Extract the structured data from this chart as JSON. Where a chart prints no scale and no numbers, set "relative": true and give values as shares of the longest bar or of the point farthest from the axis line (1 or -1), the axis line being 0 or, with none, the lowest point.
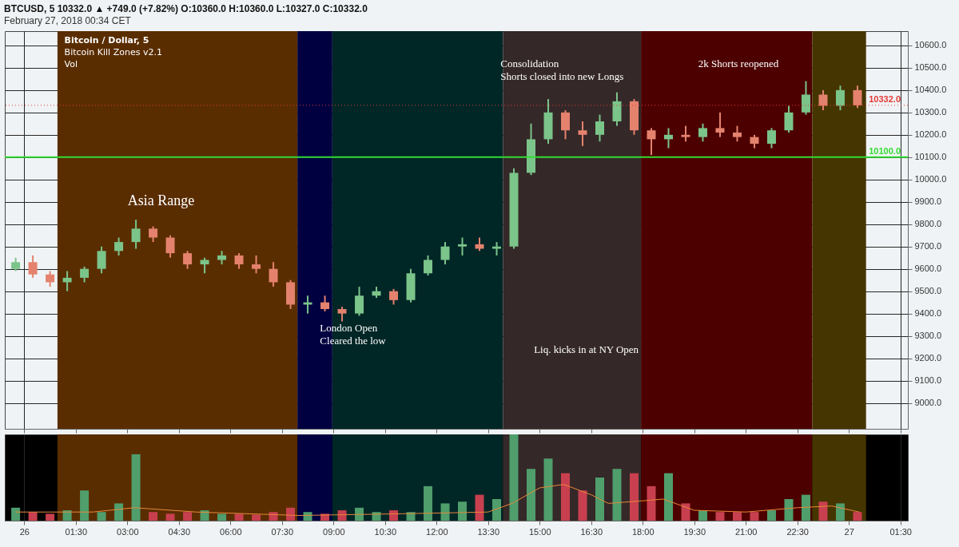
{
  "chart_data": [
    {
      "type": "candlestick",
      "title": "BTCUSD, 5  10332.0 ▲ +749.0 (+7.82%) O:10360.0 H:10360.0 L:10327.0 C:10332.0",
      "subtitle": "February 27, 2018 00:34 CET",
      "annotations": [
        "Bitcoin / Dollar, 5",
        "Bitcoin Kill Zones v2.1",
        "Vol",
        "Asia Range",
        "London Open\nCleared the low",
        "Liq. kicks in at NY Open",
        "Consolidation\nShorts closed into new Longs",
        "2k Shorts reopened"
      ],
      "x": [
        "2018-02-25T23:45",
        "2018-02-26T00:15",
        "2018-02-26T00:45",
        "2018-02-26T01:15",
        "2018-02-26T01:45",
        "2018-02-26T02:15",
        "2018-02-26T02:45",
        "2018-02-26T03:15",
        "2018-02-26T03:45",
        "2018-02-26T04:15",
        "2018-02-26T04:45",
        "2018-02-26T05:15",
        "2018-02-26T05:45",
        "2018-02-26T06:15",
        "2018-02-26T06:45",
        "2018-02-26T07:15",
        "2018-02-26T07:45",
        "2018-02-26T08:15",
        "2018-02-26T08:45",
        "2018-02-26T09:15",
        "2018-02-26T09:45",
        "2018-02-26T10:15",
        "2018-02-26T10:45",
        "2018-02-26T11:15",
        "2018-02-26T11:45",
        "2018-02-26T12:15",
        "2018-02-26T12:45",
        "2018-02-26T13:15",
        "2018-02-26T13:45",
        "2018-02-26T14:15",
        "2018-02-26T14:45",
        "2018-02-26T15:15",
        "2018-02-26T15:45",
        "2018-02-26T16:15",
        "2018-02-26T16:45",
        "2018-02-26T17:15",
        "2018-02-26T17:45",
        "2018-02-26T18:15",
        "2018-02-26T18:45",
        "2018-02-26T19:15",
        "2018-02-26T19:45",
        "2018-02-26T20:15",
        "2018-02-26T20:45",
        "2018-02-26T21:15",
        "2018-02-26T21:45",
        "2018-02-26T22:15",
        "2018-02-26T22:45",
        "2018-02-26T23:15",
        "2018-02-26T23:45",
        "2018-02-27T00:15"
      ],
      "ohlc": [
        [
          9600,
          9650,
          9590,
          9630
        ],
        [
          9630,
          9660,
          9560,
          9575
        ],
        [
          9575,
          9590,
          9520,
          9540
        ],
        [
          9540,
          9590,
          9500,
          9560
        ],
        [
          9560,
          9610,
          9540,
          9600
        ],
        [
          9600,
          9700,
          9580,
          9680
        ],
        [
          9680,
          9740,
          9660,
          9720
        ],
        [
          9720,
          9820,
          9690,
          9780
        ],
        [
          9780,
          9790,
          9720,
          9740
        ],
        [
          9740,
          9750,
          9650,
          9670
        ],
        [
          9670,
          9680,
          9600,
          9620
        ],
        [
          9620,
          9650,
          9580,
          9640
        ],
        [
          9640,
          9680,
          9620,
          9660
        ],
        [
          9660,
          9670,
          9600,
          9620
        ],
        [
          9620,
          9660,
          9580,
          9600
        ],
        [
          9600,
          9630,
          9520,
          9540
        ],
        [
          9540,
          9550,
          9420,
          9440
        ],
        [
          9440,
          9480,
          9400,
          9450
        ],
        [
          9450,
          9480,
          9410,
          9420
        ],
        [
          9420,
          9430,
          9365,
          9400
        ],
        [
          9400,
          9520,
          9390,
          9480
        ],
        [
          9480,
          9520,
          9470,
          9500
        ],
        [
          9500,
          9510,
          9440,
          9460
        ],
        [
          9460,
          9600,
          9450,
          9580
        ],
        [
          9580,
          9660,
          9570,
          9640
        ],
        [
          9640,
          9720,
          9620,
          9700
        ],
        [
          9700,
          9740,
          9660,
          9710
        ],
        [
          9710,
          9740,
          9680,
          9690
        ],
        [
          9690,
          9720,
          9660,
          9700
        ],
        [
          9700,
          10050,
          9690,
          10030
        ],
        [
          10030,
          10250,
          10020,
          10180
        ],
        [
          10180,
          10360,
          10160,
          10300
        ],
        [
          10300,
          10310,
          10180,
          10220
        ],
        [
          10220,
          10260,
          10150,
          10200
        ],
        [
          10200,
          10290,
          10170,
          10260
        ],
        [
          10260,
          10390,
          10240,
          10350
        ],
        [
          10350,
          10360,
          10200,
          10220
        ],
        [
          10220,
          10230,
          10110,
          10180
        ],
        [
          10180,
          10230,
          10140,
          10200
        ],
        [
          10200,
          10240,
          10170,
          10190
        ],
        [
          10190,
          10250,
          10170,
          10230
        ],
        [
          10230,
          10300,
          10190,
          10210
        ],
        [
          10210,
          10240,
          10170,
          10190
        ],
        [
          10190,
          10200,
          10140,
          10160
        ],
        [
          10160,
          10230,
          10140,
          10220
        ],
        [
          10220,
          10330,
          10210,
          10300
        ],
        [
          10300,
          10440,
          10290,
          10380
        ],
        [
          10380,
          10400,
          10310,
          10330
        ],
        [
          10330,
          10420,
          10310,
          10400
        ],
        [
          10400,
          10420,
          10320,
          10332
        ]
      ],
      "colors": [
        "#7bc48a",
        "#e4826e",
        "#e4826e",
        "#7bc48a",
        "#7bc48a",
        "#7bc48a",
        "#7bc48a",
        "#7bc48a",
        "#e4826e",
        "#e4826e",
        "#e4826e",
        "#7bc48a",
        "#7bc48a",
        "#e4826e",
        "#e4826e",
        "#e4826e",
        "#e4826e",
        "#7bc48a",
        "#e4826e",
        "#e4826e",
        "#7bc48a",
        "#7bc48a",
        "#e4826e",
        "#7bc48a",
        "#7bc48a",
        "#7bc48a",
        "#7bc48a",
        "#e4826e",
        "#7bc48a",
        "#7bc48a",
        "#7bc48a",
        "#7bc48a",
        "#e4826e",
        "#e4826e",
        "#7bc48a",
        "#7bc48a",
        "#e4826e",
        "#e4826e",
        "#7bc48a",
        "#e4826e",
        "#7bc48a",
        "#e4826e",
        "#e4826e",
        "#e4826e",
        "#7bc48a",
        "#7bc48a",
        "#7bc48a",
        "#e4826e",
        "#7bc48a",
        "#e4826e"
      ],
      "xlim": [
        "2018-02-25T23:33",
        "2018-02-27T01:36"
      ],
      "xticks": [
        {
          "value": "2018-02-26T00:00",
          "label": null
        },
        {
          "value": "2018-02-26T01:30",
          "label": null
        },
        {
          "value": "2018-02-26T03:00",
          "label": null
        },
        {
          "value": "2018-02-26T04:30",
          "label": null
        },
        {
          "value": "2018-02-26T06:00",
          "label": null
        },
        {
          "value": "2018-02-26T07:30",
          "label": null
        },
        {
          "value": "2018-02-26T09:00",
          "label": null
        },
        {
          "value": "2018-02-26T10:30",
          "label": null
        },
        {
          "value": "2018-02-26T12:00",
          "label": null
        },
        {
          "value": "2018-02-26T13:30",
          "label": null
        },
        {
          "value": "2018-02-26T15:00",
          "label": null
        },
        {
          "value": "2018-02-26T16:30",
          "label": null
        },
        {
          "value": "2018-02-26T18:00",
          "label": null
        },
        {
          "value": "2018-02-26T19:30",
          "label": null
        },
        {
          "value": "2018-02-26T21:00",
          "label": null
        },
        {
          "value": "2018-02-26T22:30",
          "label": null
        },
        {
          "value": "2018-02-27T00:00",
          "label": null
        },
        {
          "value": "2018-02-27T01:30",
          "label": null
        }
      ],
      "ylim": [
        8884,
        10664
      ],
      "yticks": [
        {
          "value": 9000,
          "label": "9000.0"
        },
        {
          "value": 9100,
          "label": "9100.0"
        },
        {
          "value": 9200,
          "label": "9200.0"
        },
        {
          "value": 9300,
          "label": "9300.0"
        },
        {
          "value": 9400,
          "label": "9400.0"
        },
        {
          "value": 9500,
          "label": "9500.0"
        },
        {
          "value": 9600,
          "label": "9600.0"
        },
        {
          "value": 9700,
          "label": "9700.0"
        },
        {
          "value": 9800,
          "label": "9800.0"
        },
        {
          "value": 9900,
          "label": "9900.0"
        },
        {
          "value": 10000,
          "label": "10000.0"
        },
        {
          "value": 10100,
          "label": "10100.0"
        },
        {
          "value": 10200,
          "label": "10200.0"
        },
        {
          "value": 10300,
          "label": "10300.0"
        },
        {
          "value": 10400,
          "label": "10400.0"
        },
        {
          "value": 10500,
          "label": "10500.0"
        },
        {
          "value": 10600,
          "label": "10600.0"
        }
      ],
      "tick_labels": "y",
      "grid": true,
      "bands": [
        {
          "axis": "x",
          "from": "2018-02-26T00:58",
          "to": "2018-02-26T07:57",
          "color": "#5a2d00"
        },
        {
          "axis": "x",
          "from": "2018-02-26T07:57",
          "to": "2018-02-26T08:58",
          "color": "#000040"
        },
        {
          "axis": "x",
          "from": "2018-02-26T08:58",
          "to": "2018-02-26T13:56",
          "color": "#002626"
        },
        {
          "axis": "x",
          "from": "2018-02-26T13:56",
          "to": "2018-02-26T17:57",
          "color": "#352828"
        },
        {
          "axis": "x",
          "from": "2018-02-26T17:57",
          "to": "2018-02-26T22:56",
          "color": "#4d0000"
        },
        {
          "axis": "x",
          "from": "2018-02-26T22:56",
          "to": "2018-02-27T00:30",
          "color": "#453500"
        }
      ],
      "ref_lines": [
        {
          "axis": "y",
          "value": 10332,
          "label": "10332.0",
          "color": "#e53935",
          "line_style": "dotted"
        },
        {
          "axis": "y",
          "value": 10100,
          "label": "10100.0",
          "color": "#33dd33",
          "line_style": "solid"
        }
      ]
    },
    {
      "type": "bar",
      "relative": true,
      "x": [
        "2018-02-25T23:45",
        "2018-02-26T00:15",
        "2018-02-26T00:45",
        "2018-02-26T01:15",
        "2018-02-26T01:45",
        "2018-02-26T02:15",
        "2018-02-26T02:45",
        "2018-02-26T03:15",
        "2018-02-26T03:45",
        "2018-02-26T04:15",
        "2018-02-26T04:45",
        "2018-02-26T05:15",
        "2018-02-26T05:45",
        "2018-02-26T06:15",
        "2018-02-26T06:45",
        "2018-02-26T07:15",
        "2018-02-26T07:45",
        "2018-02-26T08:15",
        "2018-02-26T08:45",
        "2018-02-26T09:15",
        "2018-02-26T09:45",
        "2018-02-26T10:15",
        "2018-02-26T10:45",
        "2018-02-26T11:15",
        "2018-02-26T11:45",
        "2018-02-26T12:15",
        "2018-02-26T12:45",
        "2018-02-26T13:15",
        "2018-02-26T13:45",
        "2018-02-26T14:15",
        "2018-02-26T14:45",
        "2018-02-26T15:15",
        "2018-02-26T15:45",
        "2018-02-26T16:15",
        "2018-02-26T16:45",
        "2018-02-26T17:15",
        "2018-02-26T17:45",
        "2018-02-26T18:15",
        "2018-02-26T18:45",
        "2018-02-26T19:15",
        "2018-02-26T19:45",
        "2018-02-26T20:15",
        "2018-02-26T20:45",
        "2018-02-26T21:15",
        "2018-02-26T21:45",
        "2018-02-26T22:15",
        "2018-02-26T22:45",
        "2018-02-26T23:15",
        "2018-02-26T23:45",
        "2018-02-27T00:15"
      ],
      "series": [
        {
          "type": "bar",
          "colors": [
            "#4f9e6c",
            "#c8404f",
            "#c8404f",
            "#4f9e6c",
            "#4f9e6c",
            "#4f9e6c",
            "#4f9e6c",
            "#4f9e6c",
            "#c8404f",
            "#c8404f",
            "#c8404f",
            "#4f9e6c",
            "#4f9e6c",
            "#c8404f",
            "#c8404f",
            "#c8404f",
            "#c8404f",
            "#4f9e6c",
            "#c8404f",
            "#c8404f",
            "#4f9e6c",
            "#4f9e6c",
            "#c8404f",
            "#4f9e6c",
            "#4f9e6c",
            "#4f9e6c",
            "#4f9e6c",
            "#c8404f",
            "#4f9e6c",
            "#4f9e6c",
            "#4f9e6c",
            "#4f9e6c",
            "#c8404f",
            "#c8404f",
            "#4f9e6c",
            "#4f9e6c",
            "#c8404f",
            "#c8404f",
            "#4f9e6c",
            "#c8404f",
            "#4f9e6c",
            "#c8404f",
            "#c8404f",
            "#c8404f",
            "#4f9e6c",
            "#4f9e6c",
            "#4f9e6c",
            "#c8404f",
            "#4f9e6c",
            "#c8404f"
          ],
          "values": [
            0.15,
            0.1,
            0.08,
            0.12,
            0.35,
            0.1,
            0.2,
            0.77,
            0.1,
            0.08,
            0.1,
            0.12,
            0.08,
            0.08,
            0.07,
            0.1,
            0.15,
            0.1,
            0.08,
            0.12,
            0.15,
            0.1,
            0.12,
            0.1,
            0.4,
            0.2,
            0.22,
            0.3,
            0.25,
            1,
            0.6,
            0.72,
            0.55,
            0.35,
            0.5,
            0.6,
            0.55,
            0.4,
            0.55,
            0.2,
            0.12,
            0.1,
            0.1,
            0.1,
            0.12,
            0.25,
            0.3,
            0.22,
            0.2,
            0.1
          ]
        },
        {
          "type": "line",
          "color": "#e8883a",
          "x": [
            "2018-02-25T23:45",
            "2018-02-26T02:00",
            "2018-02-26T03:12",
            "2018-02-26T05:00",
            "2018-02-26T08:00",
            "2018-02-26T11:00",
            "2018-02-26T13:30",
            "2018-02-26T14:12",
            "2018-02-26T15:00",
            "2018-02-26T15:42",
            "2018-02-26T16:30",
            "2018-02-26T17:00",
            "2018-02-26T18:00",
            "2018-02-26T18:36",
            "2018-02-26T19:30",
            "2018-02-26T21:00",
            "2018-02-26T22:30",
            "2018-02-26T23:30",
            "2018-02-27T00:18"
          ],
          "values": [
            0.1,
            0.1,
            0.15,
            0.1,
            0.06,
            0.08,
            0.1,
            0.2,
            0.38,
            0.42,
            0.3,
            0.2,
            0.23,
            0.25,
            0.12,
            0.1,
            0.15,
            0.17,
            0.1
          ]
        }
      ],
      "xlim": [
        "2018-02-25T23:33",
        "2018-02-27T01:36"
      ],
      "xticks": [
        {
          "value": "2018-02-26T00:00",
          "label": "26"
        },
        {
          "value": "2018-02-26T01:30",
          "label": "01:30"
        },
        {
          "value": "2018-02-26T03:00",
          "label": "03:00"
        },
        {
          "value": "2018-02-26T04:30",
          "label": "04:30"
        },
        {
          "value": "2018-02-26T06:00",
          "label": "06:00"
        },
        {
          "value": "2018-02-26T07:30",
          "label": "07:30"
        },
        {
          "value": "2018-02-26T09:00",
          "label": "09:00"
        },
        {
          "value": "2018-02-26T10:30",
          "label": "10:30"
        },
        {
          "value": "2018-02-26T12:00",
          "label": "12:00"
        },
        {
          "value": "2018-02-26T13:30",
          "label": "13:30"
        },
        {
          "value": "2018-02-26T15:00",
          "label": "15:00"
        },
        {
          "value": "2018-02-26T16:30",
          "label": "16:30"
        },
        {
          "value": "2018-02-26T18:00",
          "label": "18:00"
        },
        {
          "value": "2018-02-26T19:30",
          "label": "19:30"
        },
        {
          "value": "2018-02-26T21:00",
          "label": "21:00"
        },
        {
          "value": "2018-02-26T22:30",
          "label": "22:30"
        },
        {
          "value": "2018-02-27T00:00",
          "label": "27"
        },
        {
          "value": "2018-02-27T01:30",
          "label": "01:30"
        }
      ],
      "tick_labels": "x",
      "grid": "x",
      "bands": [
        {
          "axis": "x",
          "from": "2018-02-26T00:58",
          "to": "2018-02-26T07:57",
          "color": "#5a2d00"
        },
        {
          "axis": "x",
          "from": "2018-02-26T07:57",
          "to": "2018-02-26T08:58",
          "color": "#000040"
        },
        {
          "axis": "x",
          "from": "2018-02-26T08:58",
          "to": "2018-02-26T13:56",
          "color": "#002626"
        },
        {
          "axis": "x",
          "from": "2018-02-26T13:56",
          "to": "2018-02-26T17:57",
          "color": "#352828"
        },
        {
          "axis": "x",
          "from": "2018-02-26T17:57",
          "to": "2018-02-26T22:56",
          "color": "#4d0000"
        },
        {
          "axis": "x",
          "from": "2018-02-26T22:56",
          "to": "2018-02-27T00:30",
          "color": "#453500"
        }
      ]
    }
  ]
}
